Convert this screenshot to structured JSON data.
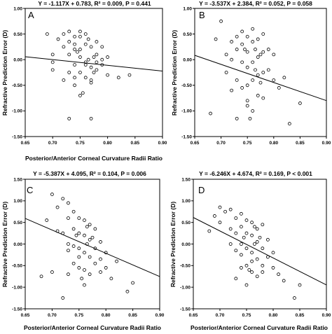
{
  "chart_data": [
    {
      "type": "scatter",
      "panel_label": "A",
      "title": "Y = -1.117X + 0.783, R² = 0.009, P = 0.441",
      "xlabel": "Posterior/Anterior Corneal Curvature Radii Ratio",
      "ylabel": "Refractive Prediction Error (D)",
      "xlim": [
        0.65,
        0.9
      ],
      "ylim": [
        -1.5,
        1.0
      ],
      "xticks": [
        "0.65",
        "0.70",
        "0.75",
        "0.80",
        "0.85",
        "0.90"
      ],
      "yticks": [
        "1.00",
        "0.50",
        "0.00",
        "-0.50",
        "-1.00",
        "-1.50"
      ],
      "fit": {
        "slope": -1.117,
        "intercept": 0.783
      },
      "x": [
        0.69,
        0.7,
        0.7,
        0.71,
        0.72,
        0.72,
        0.73,
        0.73,
        0.73,
        0.73,
        0.74,
        0.74,
        0.74,
        0.74,
        0.74,
        0.745,
        0.75,
        0.75,
        0.75,
        0.75,
        0.75,
        0.755,
        0.76,
        0.76,
        0.76,
        0.76,
        0.765,
        0.765,
        0.77,
        0.77,
        0.77,
        0.77,
        0.775,
        0.775,
        0.78,
        0.78,
        0.78,
        0.79,
        0.79,
        0.8,
        0.8,
        0.7,
        0.72,
        0.73,
        0.75,
        0.77,
        0.79,
        0.82,
        0.84,
        0.78,
        0.74,
        0.76
      ],
      "y": [
        0.5,
        0.1,
        -0.05,
        0.4,
        0.5,
        0.25,
        0.55,
        0.35,
        -0.25,
        -1.15,
        0.3,
        0.2,
        -0.1,
        -0.35,
        -0.5,
        0.15,
        0.55,
        0.45,
        0.05,
        -0.25,
        -0.7,
        -0.65,
        0.5,
        0.3,
        -0.05,
        -0.35,
        0.4,
        0.0,
        0.25,
        -0.15,
        -0.45,
        -1.15,
        0.05,
        -0.25,
        0.35,
        0.1,
        -0.2,
        0.25,
        -0.1,
        0.05,
        -0.3,
        -0.2,
        -0.4,
        0.1,
        0.2,
        -0.4,
        0.0,
        -0.35,
        -0.3,
        -0.05,
        0.45,
        -0.1
      ]
    },
    {
      "type": "scatter",
      "panel_label": "B",
      "title": "Y = -3.537X + 2.384, R² = 0.052, P = 0.058",
      "xlabel": "",
      "ylabel": "Refractive Prediction Error (D)",
      "xlim": [
        0.65,
        0.9
      ],
      "ylim": [
        -1.5,
        1.0
      ],
      "xticks": [
        "0.65",
        "0.70",
        "0.75",
        "0.80",
        "0.85",
        "0.90"
      ],
      "yticks": [
        "1.00",
        "0.50",
        "0.00",
        "-0.50",
        "-1.00",
        "-1.50"
      ],
      "fit": {
        "slope": -3.537,
        "intercept": 2.384
      },
      "x": [
        0.68,
        0.69,
        0.7,
        0.71,
        0.71,
        0.72,
        0.72,
        0.73,
        0.73,
        0.73,
        0.73,
        0.74,
        0.74,
        0.74,
        0.74,
        0.745,
        0.75,
        0.75,
        0.75,
        0.75,
        0.75,
        0.755,
        0.76,
        0.76,
        0.76,
        0.76,
        0.765,
        0.765,
        0.77,
        0.77,
        0.77,
        0.77,
        0.775,
        0.775,
        0.78,
        0.78,
        0.78,
        0.79,
        0.79,
        0.8,
        0.8,
        0.81,
        0.82,
        0.83,
        0.85,
        0.72,
        0.75,
        0.78,
        0.76
      ],
      "y": [
        -1.05,
        0.4,
        0.75,
        0.1,
        -0.25,
        0.35,
        0.0,
        0.45,
        0.2,
        -0.4,
        -1.15,
        0.55,
        0.3,
        -0.05,
        -0.55,
        0.2,
        0.45,
        0.15,
        -0.15,
        -0.5,
        -0.8,
        -1.15,
        0.6,
        0.35,
        -0.05,
        -0.4,
        0.2,
        -0.2,
        0.4,
        0.05,
        -0.3,
        -0.7,
        0.1,
        -0.45,
        0.5,
        0.15,
        -0.25,
        0.2,
        -0.2,
        0.1,
        -0.4,
        -0.55,
        -0.35,
        -1.25,
        -0.85,
        -0.6,
        -0.9,
        -0.75,
        -1.0
      ]
    },
    {
      "type": "scatter",
      "panel_label": "C",
      "title": "Y = -5.387X + 4.095, R² = 0.104, P = 0.006",
      "xlabel": "Posterior/Anterior Corneal Curvature Radii Ratio",
      "ylabel": "Refractive Prediction Error (D)",
      "xlim": [
        0.65,
        0.9
      ],
      "ylim": [
        -1.5,
        1.5
      ],
      "xticks": [
        "0.65",
        "0.70",
        "0.75",
        "0.80",
        "0.85",
        "0.90"
      ],
      "yticks": [
        "1.50",
        "1.00",
        "0.50",
        "0.00",
        "-0.50",
        "-1.00",
        "-1.50"
      ],
      "fit": {
        "slope": -5.387,
        "intercept": 4.095
      },
      "x": [
        0.68,
        0.69,
        0.7,
        0.7,
        0.71,
        0.72,
        0.72,
        0.72,
        0.73,
        0.73,
        0.73,
        0.73,
        0.74,
        0.74,
        0.74,
        0.74,
        0.745,
        0.75,
        0.75,
        0.75,
        0.75,
        0.755,
        0.76,
        0.76,
        0.76,
        0.76,
        0.765,
        0.765,
        0.77,
        0.77,
        0.77,
        0.77,
        0.775,
        0.78,
        0.78,
        0.78,
        0.79,
        0.79,
        0.8,
        0.8,
        0.81,
        0.82,
        0.84,
        0.85,
        0.71,
        0.73,
        0.76,
        0.79,
        0.75
      ],
      "y": [
        -0.75,
        0.55,
        1.15,
        -0.65,
        0.85,
        1.05,
        0.25,
        -1.25,
        0.95,
        0.6,
        0.0,
        -0.7,
        0.75,
        0.35,
        -0.05,
        -0.45,
        0.2,
        0.6,
        0.25,
        -0.1,
        -0.55,
        -0.8,
        0.55,
        0.2,
        -0.2,
        -0.6,
        0.4,
        0.0,
        0.45,
        0.1,
        -0.3,
        -0.7,
        0.15,
        0.35,
        -0.1,
        -0.45,
        0.05,
        -0.35,
        -0.2,
        -0.55,
        -0.8,
        -0.4,
        -1.1,
        -0.9,
        0.3,
        -0.15,
        -0.95,
        -0.65,
        -0.3
      ]
    },
    {
      "type": "scatter",
      "panel_label": "D",
      "title": "Y = -6.246X + 4.674, R² = 0.169, P < 0.001",
      "xlabel": "Posterior/Anterior Corneal Curvature Radii Ratio",
      "ylabel": "Refractive Prediction Error (D)",
      "xlim": [
        0.65,
        0.9
      ],
      "ylim": [
        -1.5,
        1.5
      ],
      "xticks": [
        "0.65",
        "0.70",
        "0.75",
        "0.80",
        "0.85",
        "0.90"
      ],
      "yticks": [
        "1.50",
        "1.00",
        "0.50",
        "0.00",
        "-0.50",
        "-1.00",
        "-1.50"
      ],
      "fit": {
        "slope": -6.246,
        "intercept": 4.674
      },
      "x": [
        0.68,
        0.69,
        0.7,
        0.7,
        0.71,
        0.72,
        0.72,
        0.73,
        0.73,
        0.73,
        0.73,
        0.74,
        0.74,
        0.74,
        0.74,
        0.745,
        0.75,
        0.75,
        0.75,
        0.75,
        0.75,
        0.755,
        0.76,
        0.76,
        0.76,
        0.76,
        0.765,
        0.765,
        0.77,
        0.77,
        0.77,
        0.77,
        0.775,
        0.78,
        0.78,
        0.78,
        0.79,
        0.79,
        0.8,
        0.8,
        0.81,
        0.82,
        0.84,
        0.85,
        0.72,
        0.74,
        0.76,
        0.78
      ],
      "y": [
        0.3,
        0.65,
        0.85,
        0.5,
        0.75,
        0.8,
        0.35,
        0.6,
        0.25,
        -0.15,
        -0.8,
        0.7,
        0.4,
        0.0,
        -0.55,
        0.15,
        0.55,
        0.25,
        -0.1,
        -0.5,
        -0.95,
        -0.6,
        0.5,
        0.2,
        -0.2,
        -0.65,
        0.4,
        0.0,
        0.35,
        0.05,
        -0.35,
        -0.75,
        0.15,
        0.45,
        -0.1,
        -0.5,
        0.1,
        -0.3,
        -0.2,
        -0.55,
        -0.7,
        -0.85,
        -1.25,
        -0.95,
        0.0,
        -0.25,
        -0.4,
        -0.65
      ]
    }
  ]
}
